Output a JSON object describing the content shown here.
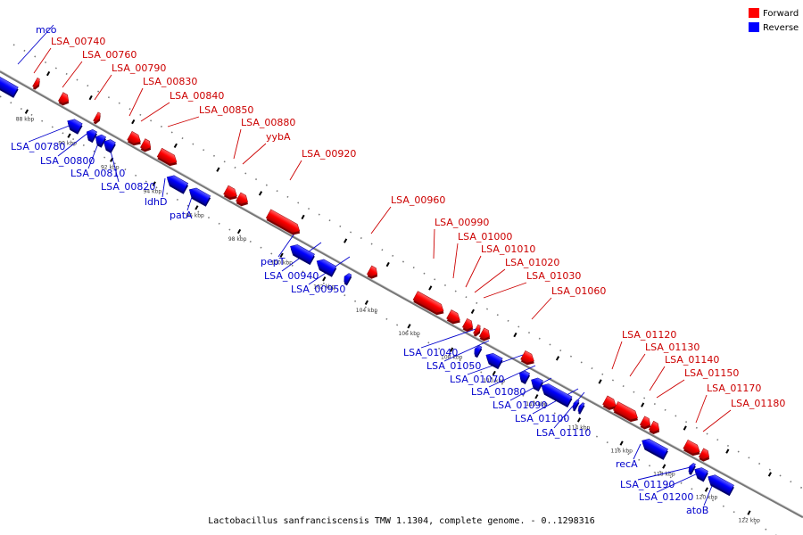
{
  "footer_caption": "Lactobacillus sanfranciscensis TMW 1.1304, complete genome. - 0..1298316",
  "legend": {
    "placement": "top-right",
    "items": [
      {
        "label": "Forward",
        "color": "#ff0000"
      },
      {
        "label": "Reverse",
        "color": "#0000ff"
      }
    ]
  },
  "colors": {
    "forward": "#ff0000",
    "forward_label": "#cc0000",
    "reverse": "#0000ff",
    "reverse_label": "#0000cc",
    "backbone": "#888888"
  },
  "ticks": [
    {
      "kbp": 88,
      "label": "88 kbp"
    },
    {
      "kbp": 90,
      "label": "90 kbp"
    },
    {
      "kbp": 92,
      "label": "92 kbp"
    },
    {
      "kbp": 94,
      "label": "94 kbp"
    },
    {
      "kbp": 96,
      "label": "96 kbp"
    },
    {
      "kbp": 98,
      "label": "98 kbp"
    },
    {
      "kbp": 100,
      "label": "100 kbp"
    },
    {
      "kbp": 102,
      "label": "102 kbp"
    },
    {
      "kbp": 104,
      "label": "104 kbp"
    },
    {
      "kbp": 106,
      "label": "106 kbp"
    },
    {
      "kbp": 108,
      "label": "108 kbp"
    },
    {
      "kbp": 110,
      "label": "110 kbp"
    },
    {
      "kbp": 112,
      "label": "112 kbp"
    },
    {
      "kbp": 114,
      "label": "114 kbp"
    },
    {
      "kbp": 116,
      "label": "116 kbp"
    },
    {
      "kbp": 118,
      "label": "118 kbp"
    },
    {
      "kbp": 120,
      "label": "120 kbp"
    },
    {
      "kbp": 122,
      "label": "122 kbp"
    }
  ],
  "genes": [
    {
      "name": "mco",
      "strand": "reverse"
    },
    {
      "name": "LSA_00740",
      "strand": "forward"
    },
    {
      "name": "LSA_00760",
      "strand": "forward"
    },
    {
      "name": "LSA_00790",
      "strand": "forward"
    },
    {
      "name": "LSA_00780",
      "strand": "reverse"
    },
    {
      "name": "LSA_00800",
      "strand": "reverse"
    },
    {
      "name": "LSA_00830",
      "strand": "forward"
    },
    {
      "name": "LSA_00840",
      "strand": "forward"
    },
    {
      "name": "LSA_00810",
      "strand": "reverse"
    },
    {
      "name": "LSA_00850",
      "strand": "forward"
    },
    {
      "name": "LSA_00820",
      "strand": "reverse"
    },
    {
      "name": "LSA_00880",
      "strand": "forward"
    },
    {
      "name": "yybA",
      "strand": "forward"
    },
    {
      "name": "ldhD",
      "strand": "reverse"
    },
    {
      "name": "patA",
      "strand": "reverse"
    },
    {
      "name": "LSA_00920",
      "strand": "forward"
    },
    {
      "name": "pepT",
      "strand": "reverse"
    },
    {
      "name": "LSA_00940",
      "strand": "reverse"
    },
    {
      "name": "LSA_00950",
      "strand": "reverse"
    },
    {
      "name": "LSA_00960",
      "strand": "forward"
    },
    {
      "name": "LSA_00990",
      "strand": "forward"
    },
    {
      "name": "LSA_01000",
      "strand": "forward"
    },
    {
      "name": "LSA_01010",
      "strand": "forward"
    },
    {
      "name": "LSA_01020",
      "strand": "forward"
    },
    {
      "name": "LSA_01030",
      "strand": "forward"
    },
    {
      "name": "LSA_01040",
      "strand": "reverse"
    },
    {
      "name": "LSA_01050",
      "strand": "reverse"
    },
    {
      "name": "LSA_01060",
      "strand": "forward"
    },
    {
      "name": "LSA_01070",
      "strand": "reverse"
    },
    {
      "name": "LSA_01080",
      "strand": "reverse"
    },
    {
      "name": "LSA_01090",
      "strand": "reverse"
    },
    {
      "name": "LSA_01100",
      "strand": "reverse"
    },
    {
      "name": "LSA_01110",
      "strand": "reverse"
    },
    {
      "name": "LSA_01120",
      "strand": "forward"
    },
    {
      "name": "LSA_01130",
      "strand": "forward"
    },
    {
      "name": "LSA_01140",
      "strand": "forward"
    },
    {
      "name": "LSA_01150",
      "strand": "forward"
    },
    {
      "name": "LSA_01170",
      "strand": "forward"
    },
    {
      "name": "LSA_01180",
      "strand": "forward"
    },
    {
      "name": "recA",
      "strand": "reverse"
    },
    {
      "name": "LSA_01190",
      "strand": "reverse"
    },
    {
      "name": "LSA_01200",
      "strand": "reverse"
    },
    {
      "name": "atoB",
      "strand": "reverse"
    }
  ]
}
